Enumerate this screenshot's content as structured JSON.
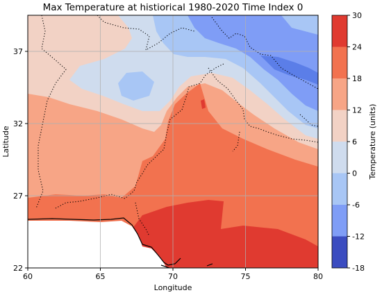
{
  "title": "Max Temperature at histiorical 1980-2020 Time Index 0",
  "xlabel": "Longitude",
  "ylabel": "Latitude",
  "colorbar_label": "Temperature (units)",
  "x_ticks": [
    "60",
    "65",
    "70",
    "75",
    "80"
  ],
  "y_ticks": [
    "22",
    "27",
    "32",
    "37"
  ],
  "colorbar_ticks": [
    "30",
    "24",
    "18",
    "12",
    "6",
    "0",
    "-6",
    "-12",
    "-18"
  ],
  "colorbar_colors": [
    "#e03a30",
    "#f2724f",
    "#f7a586",
    "#f2d2c5",
    "#cfdcee",
    "#a8c6f5",
    "#7f9df6",
    "#5b7ee8",
    "#3b4cc0"
  ],
  "chart_data": {
    "type": "heatmap",
    "title": "Max Temperature at histiorical 1980-2020 Time Index 0",
    "xlabel": "Longitude",
    "ylabel": "Latitude",
    "xlim": [
      60,
      80
    ],
    "ylim": [
      22,
      39.5
    ],
    "x_ticks": [
      60,
      65,
      70,
      75,
      80
    ],
    "y_ticks": [
      22,
      27,
      32,
      37
    ],
    "colorbar": {
      "label": "Temperature (units)",
      "levels": [
        -18,
        -12,
        -6,
        0,
        6,
        12,
        18,
        24,
        30
      ],
      "colors": [
        "#3b4cc0",
        "#5b7ee8",
        "#7f9df6",
        "#a8c6f5",
        "#cfdcee",
        "#f2d2c5",
        "#f7a586",
        "#f2724f",
        "#e03a30"
      ]
    },
    "grid": true
  }
}
